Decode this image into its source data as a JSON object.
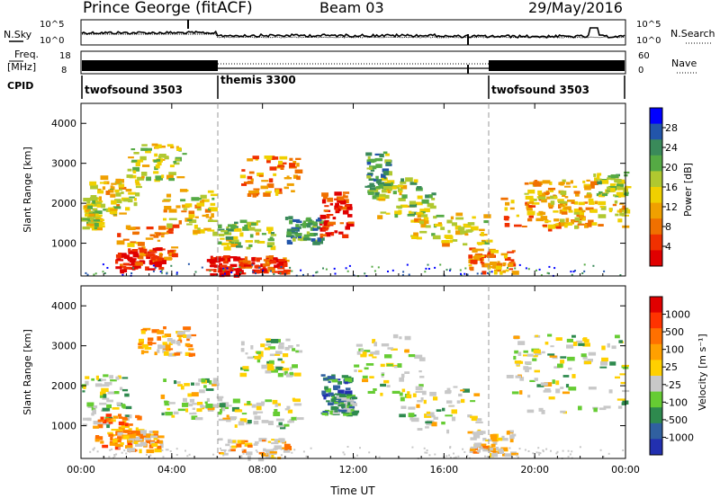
{
  "header": {
    "station": "Prince George (fitACF)",
    "beam": "Beam 03",
    "date": "29/May/2016"
  },
  "status_panels": {
    "nsky_label": "N.Sky",
    "nsearch_label": "N.Search",
    "noise_ticks": [
      "10^5",
      "10^0"
    ],
    "freq_label": [
      "Freq.",
      "[MHz]"
    ],
    "freq_ticks": [
      "18",
      "8"
    ],
    "nave_label": "Nave",
    "nave_ticks": [
      "60",
      "0"
    ],
    "cpid_label": "CPID",
    "cpid_segments": [
      {
        "name": "twofsound 3503",
        "start_hour": 0,
        "end_hour": 6
      },
      {
        "name": "themis 3300",
        "start_hour": 6,
        "end_hour": 18
      },
      {
        "name": "twofsound 3503",
        "start_hour": 18,
        "end_hour": 24
      }
    ]
  },
  "colors": {
    "ground_scatter": "#c8c8c8",
    "power_scale": [
      "#0000ff",
      "#2255aa",
      "#3a8a5a",
      "#55aa44",
      "#b0c830",
      "#f0d000",
      "#f0a000",
      "#f07000",
      "#f03000",
      "#e00000"
    ],
    "velocity_scale": [
      "#2230b0",
      "#3060a0",
      "#2e8a4e",
      "#66cc33",
      "#c8c8c8",
      "#ffd000",
      "#ffa000",
      "#ff7000",
      "#ff3300",
      "#e00000"
    ]
  },
  "chart_data": [
    {
      "type": "heatmap",
      "name": "power",
      "ylabel": "Slant Range [km]",
      "xlabel": "Time UT",
      "xlim": [
        0,
        24
      ],
      "ylim": [
        180,
        4500
      ],
      "x_ticks": [
        "00:00",
        "04:00",
        "08:00",
        "12:00",
        "16:00",
        "20:00",
        "00:00"
      ],
      "y_ticks": [
        "1000",
        "2000",
        "3000",
        "4000"
      ],
      "colorbar_label": "Power [dB]",
      "colorbar_ticks": [
        "28",
        "24",
        "20",
        "16",
        "12",
        "8",
        "4"
      ],
      "features": [
        {
          "t0": 0.0,
          "t1": 0.8,
          "r0": 1400,
          "r1": 2200,
          "level": 0.5
        },
        {
          "t0": 0.3,
          "t1": 2.5,
          "r0": 1700,
          "r1": 2700,
          "level": 0.55
        },
        {
          "t0": 1.5,
          "t1": 4.0,
          "r0": 600,
          "r1": 1500,
          "level": 0.75
        },
        {
          "t0": 1.5,
          "t1": 3.5,
          "r0": 350,
          "r1": 900,
          "level": 0.95
        },
        {
          "t0": 2.0,
          "t1": 4.5,
          "r0": 2600,
          "r1": 3500,
          "level": 0.5
        },
        {
          "t0": 3.5,
          "t1": 5.8,
          "r0": 1200,
          "r1": 2400,
          "level": 0.55
        },
        {
          "t0": 5.5,
          "t1": 7.0,
          "r0": 200,
          "r1": 700,
          "level": 0.95
        },
        {
          "t0": 7.0,
          "t1": 9.0,
          "r0": 300,
          "r1": 700,
          "level": 0.85
        },
        {
          "t0": 6.0,
          "t1": 8.5,
          "r0": 900,
          "r1": 1600,
          "level": 0.45
        },
        {
          "t0": 7.0,
          "t1": 9.5,
          "r0": 2200,
          "r1": 3200,
          "level": 0.7
        },
        {
          "t0": 9.0,
          "t1": 10.5,
          "r0": 1000,
          "r1": 1700,
          "level": 0.3
        },
        {
          "t0": 10.5,
          "t1": 11.8,
          "r0": 1200,
          "r1": 2300,
          "level": 0.9
        },
        {
          "t0": 12.5,
          "t1": 13.5,
          "r0": 2200,
          "r1": 3300,
          "level": 0.35
        },
        {
          "t0": 13.0,
          "t1": 15.5,
          "r0": 1700,
          "r1": 2700,
          "level": 0.45
        },
        {
          "t0": 14.5,
          "t1": 18.0,
          "r0": 1000,
          "r1": 1800,
          "level": 0.55
        },
        {
          "t0": 17.0,
          "t1": 19.0,
          "r0": 300,
          "r1": 900,
          "level": 0.7
        },
        {
          "t0": 18.5,
          "t1": 22.0,
          "r0": 1400,
          "r1": 2200,
          "level": 0.7
        },
        {
          "t0": 19.5,
          "t1": 22.5,
          "r0": 2000,
          "r1": 2600,
          "level": 0.6
        },
        {
          "t0": 21.0,
          "t1": 24.0,
          "r0": 1400,
          "r1": 2100,
          "level": 0.6
        },
        {
          "t0": 22.5,
          "t1": 24.0,
          "r0": 2200,
          "r1": 2800,
          "level": 0.45
        }
      ]
    },
    {
      "type": "heatmap",
      "name": "velocity",
      "ylabel": "Slant Range [km]",
      "xlabel": "Time UT",
      "xlim": [
        0,
        24
      ],
      "ylim": [
        180,
        4500
      ],
      "x_ticks": [
        "00:00",
        "04:00",
        "08:00",
        "12:00",
        "16:00",
        "20:00",
        "00:00"
      ],
      "y_ticks": [
        "1000",
        "2000",
        "3000",
        "4000"
      ],
      "colorbar_label": "Velocity [m s⁻¹]",
      "colorbar_ticks": [
        "1000",
        "500",
        "100",
        "25",
        "-25",
        "-100",
        "-500",
        "-1000"
      ],
      "features": [
        {
          "t0": 0.0,
          "t1": 2.0,
          "r0": 1000,
          "r1": 2300,
          "level": 0.4
        },
        {
          "t0": 0.5,
          "t1": 2.5,
          "r0": 500,
          "r1": 1300,
          "level": 0.7
        },
        {
          "t0": 1.5,
          "t1": 3.5,
          "r0": 400,
          "r1": 900,
          "level": 0.62
        },
        {
          "t0": 2.5,
          "t1": 4.8,
          "r0": 2800,
          "r1": 3500,
          "level": 0.6
        },
        {
          "t0": 3.5,
          "t1": 6.0,
          "r0": 1200,
          "r1": 2200,
          "level": 0.45
        },
        {
          "t0": 6.0,
          "t1": 9.0,
          "r0": 200,
          "r1": 700,
          "level": 0.58
        },
        {
          "t0": 6.0,
          "t1": 9.5,
          "r0": 1000,
          "r1": 1700,
          "level": 0.45
        },
        {
          "t0": 7.0,
          "t1": 9.5,
          "r0": 2300,
          "r1": 3200,
          "level": 0.45
        },
        {
          "t0": 10.5,
          "t1": 11.8,
          "r0": 1300,
          "r1": 2300,
          "level": 0.2
        },
        {
          "t0": 11.0,
          "t1": 12.0,
          "r0": 1300,
          "r1": 1800,
          "level": 0.3
        },
        {
          "t0": 12.0,
          "t1": 15.0,
          "r0": 1800,
          "r1": 3300,
          "level": 0.45
        },
        {
          "t0": 14.0,
          "t1": 17.5,
          "r0": 900,
          "r1": 2000,
          "level": 0.45
        },
        {
          "t0": 17.0,
          "t1": 19.0,
          "r0": 300,
          "r1": 900,
          "level": 0.55
        },
        {
          "t0": 18.5,
          "t1": 24.0,
          "r0": 1300,
          "r1": 2700,
          "level": 0.45
        },
        {
          "t0": 19.0,
          "t1": 24.0,
          "r0": 2600,
          "r1": 3300,
          "level": 0.45
        }
      ]
    }
  ]
}
